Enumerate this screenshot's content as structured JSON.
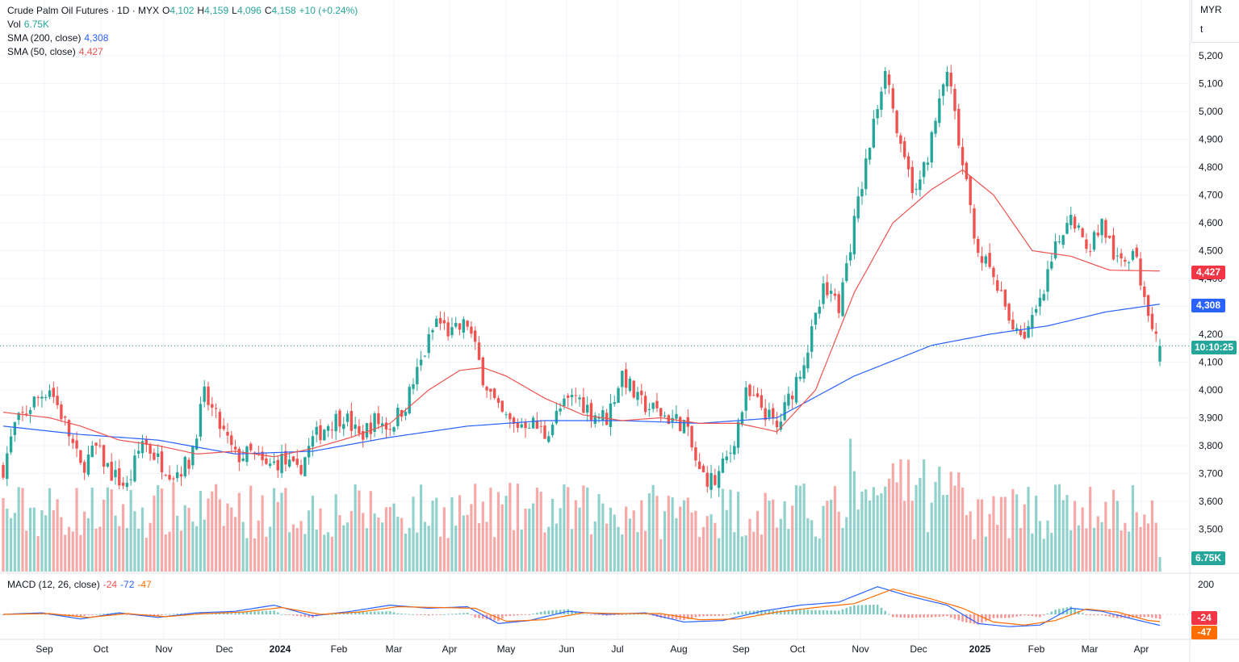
{
  "header": {
    "title": "Crude Palm Oil Futures · 1D · MYX",
    "o_label": "O",
    "o_value": "4,102",
    "h_label": "H",
    "h_value": "4,159",
    "l_label": "L",
    "l_value": "4,096",
    "c_label": "C",
    "c_value": "4,158",
    "change": "+10 (+0.24%)",
    "vol_label": "Vol",
    "vol_value": "6.75K",
    "sma200_label": "SMA (200, close)",
    "sma200_value": "4,308",
    "sma50_label": "SMA (50, close)",
    "sma50_value": "4,427"
  },
  "axis_header": {
    "currency": "MYR",
    "unit": "t"
  },
  "price_tags": {
    "sma50": "4,427",
    "sma200": "4,308",
    "countdown": "10:10:25",
    "volume": "6.75K"
  },
  "macd": {
    "label": "MACD (12, 26, close)",
    "histogram": "-24",
    "macd": "-72",
    "signal": "-47",
    "tag_hist": "-24",
    "tag_signal": "-47",
    "axis_200": "200"
  },
  "colors": {
    "up": "#26a69a",
    "down": "#ef5350",
    "sma50": "#ef5350",
    "sma200": "#2962ff",
    "macd_line": "#2962ff",
    "signal_line": "#ff6d00",
    "last_price": "#26a69a",
    "grid": "#f0f3fa"
  },
  "chart_data": {
    "type": "candlestick",
    "price_axis": {
      "ticks": [
        "5,200",
        "5,100",
        "5,000",
        "4,900",
        "4,800",
        "4,700",
        "4,600",
        "4,500",
        "4,400",
        "4,300",
        "4,200",
        "4,100",
        "4,000",
        "3,900",
        "3,800",
        "3,700",
        "3,600",
        "3,500"
      ]
    },
    "time_axis": [
      "Sep",
      "Oct",
      "Nov",
      "Dec",
      "2024",
      "Feb",
      "Mar",
      "Apr",
      "May",
      "Jun",
      "Jul",
      "Aug",
      "Sep",
      "Oct",
      "Nov",
      "Dec",
      "2025",
      "Feb",
      "Mar",
      "Apr"
    ],
    "last_close": 4158,
    "close_anchors": [
      [
        0,
        3720
      ],
      [
        3,
        3870
      ],
      [
        8,
        3960
      ],
      [
        12,
        4010
      ],
      [
        16,
        3880
      ],
      [
        20,
        3720
      ],
      [
        24,
        3790
      ],
      [
        28,
        3700
      ],
      [
        32,
        3650
      ],
      [
        36,
        3820
      ],
      [
        40,
        3750
      ],
      [
        44,
        3700
      ],
      [
        48,
        3740
      ],
      [
        52,
        3980
      ],
      [
        56,
        3870
      ],
      [
        60,
        3760
      ],
      [
        64,
        3770
      ],
      [
        68,
        3720
      ],
      [
        72,
        3750
      ],
      [
        76,
        3700
      ],
      [
        80,
        3820
      ],
      [
        84,
        3880
      ],
      [
        88,
        3910
      ],
      [
        92,
        3830
      ],
      [
        96,
        3890
      ],
      [
        100,
        3870
      ],
      [
        104,
        3950
      ],
      [
        108,
        4100
      ],
      [
        112,
        4250
      ],
      [
        116,
        4200
      ],
      [
        120,
        4240
      ],
      [
        124,
        4050
      ],
      [
        128,
        3920
      ],
      [
        132,
        3870
      ],
      [
        136,
        3890
      ],
      [
        140,
        3840
      ],
      [
        144,
        3930
      ],
      [
        148,
        3980
      ],
      [
        152,
        3920
      ],
      [
        156,
        3900
      ],
      [
        160,
        4060
      ],
      [
        164,
        3960
      ],
      [
        168,
        3930
      ],
      [
        172,
        3900
      ],
      [
        176,
        3880
      ],
      [
        180,
        3700
      ],
      [
        184,
        3670
      ],
      [
        188,
        3780
      ],
      [
        192,
        3980
      ],
      [
        196,
        3940
      ],
      [
        200,
        3860
      ],
      [
        204,
        4000
      ],
      [
        208,
        4150
      ],
      [
        212,
        4350
      ],
      [
        216,
        4300
      ],
      [
        220,
        4600
      ],
      [
        224,
        4880
      ],
      [
        228,
        5170
      ],
      [
        232,
        4850
      ],
      [
        236,
        4700
      ],
      [
        240,
        4900
      ],
      [
        244,
        5150
      ],
      [
        248,
        4800
      ],
      [
        252,
        4500
      ],
      [
        256,
        4400
      ],
      [
        260,
        4250
      ],
      [
        264,
        4200
      ],
      [
        268,
        4300
      ],
      [
        272,
        4500
      ],
      [
        276,
        4650
      ],
      [
        280,
        4500
      ],
      [
        284,
        4600
      ],
      [
        288,
        4450
      ],
      [
        292,
        4500
      ],
      [
        296,
        4300
      ],
      [
        299,
        4158
      ]
    ],
    "sma50_anchors": [
      [
        0,
        3920
      ],
      [
        12,
        3900
      ],
      [
        20,
        3870
      ],
      [
        30,
        3820
      ],
      [
        40,
        3800
      ],
      [
        50,
        3770
      ],
      [
        60,
        3780
      ],
      [
        70,
        3760
      ],
      [
        80,
        3790
      ],
      [
        90,
        3830
      ],
      [
        100,
        3880
      ],
      [
        110,
        4000
      ],
      [
        118,
        4070
      ],
      [
        124,
        4080
      ],
      [
        130,
        4050
      ],
      [
        140,
        3970
      ],
      [
        150,
        3910
      ],
      [
        160,
        3890
      ],
      [
        170,
        3900
      ],
      [
        180,
        3880
      ],
      [
        190,
        3880
      ],
      [
        200,
        3850
      ],
      [
        210,
        4000
      ],
      [
        220,
        4350
      ],
      [
        230,
        4600
      ],
      [
        240,
        4720
      ],
      [
        248,
        4790
      ],
      [
        256,
        4700
      ],
      [
        266,
        4500
      ],
      [
        276,
        4480
      ],
      [
        286,
        4430
      ],
      [
        299,
        4427
      ]
    ],
    "sma200_anchors": [
      [
        0,
        3870
      ],
      [
        20,
        3840
      ],
      [
        40,
        3820
      ],
      [
        60,
        3770
      ],
      [
        80,
        3780
      ],
      [
        100,
        3830
      ],
      [
        120,
        3870
      ],
      [
        140,
        3890
      ],
      [
        160,
        3890
      ],
      [
        180,
        3880
      ],
      [
        200,
        3900
      ],
      [
        220,
        4050
      ],
      [
        240,
        4160
      ],
      [
        255,
        4200
      ],
      [
        270,
        4230
      ],
      [
        285,
        4280
      ],
      [
        299,
        4308
      ]
    ],
    "macd_anchors": [
      [
        0,
        0
      ],
      [
        10,
        10
      ],
      [
        20,
        -30
      ],
      [
        30,
        10
      ],
      [
        40,
        -20
      ],
      [
        50,
        10
      ],
      [
        60,
        20
      ],
      [
        70,
        60
      ],
      [
        80,
        -10
      ],
      [
        90,
        20
      ],
      [
        100,
        60
      ],
      [
        110,
        40
      ],
      [
        120,
        50
      ],
      [
        128,
        -60
      ],
      [
        136,
        -40
      ],
      [
        146,
        20
      ],
      [
        156,
        0
      ],
      [
        166,
        10
      ],
      [
        176,
        -50
      ],
      [
        186,
        -40
      ],
      [
        196,
        20
      ],
      [
        206,
        60
      ],
      [
        216,
        80
      ],
      [
        226,
        180
      ],
      [
        234,
        120
      ],
      [
        244,
        60
      ],
      [
        252,
        -60
      ],
      [
        260,
        -80
      ],
      [
        268,
        -70
      ],
      [
        276,
        40
      ],
      [
        284,
        20
      ],
      [
        292,
        -30
      ],
      [
        299,
        -72
      ]
    ],
    "signal_anchors": [
      [
        0,
        0
      ],
      [
        12,
        5
      ],
      [
        22,
        -20
      ],
      [
        32,
        5
      ],
      [
        42,
        -15
      ],
      [
        52,
        5
      ],
      [
        62,
        15
      ],
      [
        72,
        45
      ],
      [
        82,
        0
      ],
      [
        92,
        15
      ],
      [
        102,
        50
      ],
      [
        112,
        45
      ],
      [
        122,
        40
      ],
      [
        130,
        -45
      ],
      [
        140,
        -35
      ],
      [
        150,
        10
      ],
      [
        160,
        5
      ],
      [
        170,
        5
      ],
      [
        180,
        -35
      ],
      [
        190,
        -30
      ],
      [
        200,
        15
      ],
      [
        210,
        45
      ],
      [
        220,
        70
      ],
      [
        230,
        165
      ],
      [
        240,
        100
      ],
      [
        248,
        40
      ],
      [
        256,
        -50
      ],
      [
        264,
        -70
      ],
      [
        272,
        -40
      ],
      [
        280,
        35
      ],
      [
        288,
        15
      ],
      [
        296,
        -40
      ],
      [
        299,
        -47
      ]
    ]
  }
}
